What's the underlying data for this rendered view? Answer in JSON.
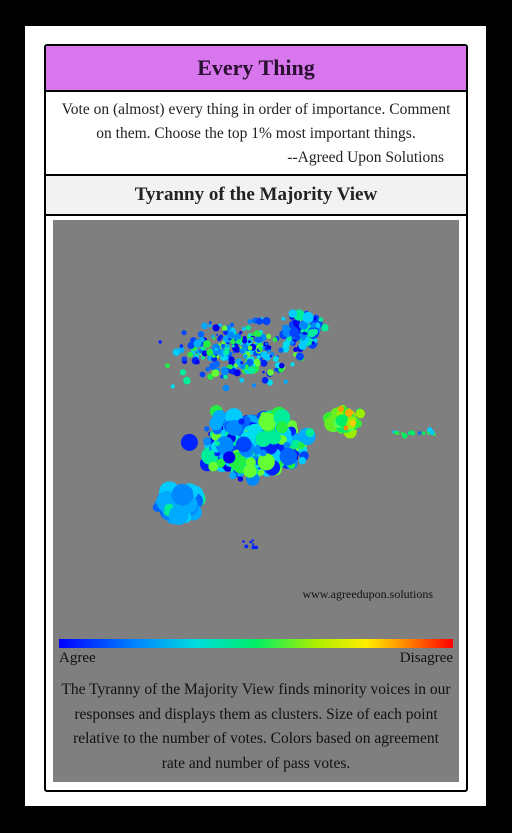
{
  "card": {
    "title": "Every Thing",
    "intro_text": "Vote on (almost) every thing in order of importance. Comment on them. Choose the top 1% most important things.",
    "signature": "--Agreed Upon Solutions",
    "view_title": "Tyranny of the Majority View",
    "watermark": "www.agreedupon.solutions",
    "scale": {
      "left_label": "Agree",
      "right_label": "Disagree",
      "colors": [
        "#0000ff",
        "#0088ff",
        "#00dddd",
        "#00ee66",
        "#aaee00",
        "#ffee00",
        "#ff8800",
        "#ff0000"
      ]
    },
    "description": "The Tyranny of the Majority View finds minority voices in our responses and displays them as clusters. Size of each point relative to the number of votes. Colors based on agreement rate and number of pass votes."
  },
  "colors": {
    "header_bg": "#d876ee",
    "panel_bg": "#7f7f7f",
    "frame": "#000000"
  }
}
